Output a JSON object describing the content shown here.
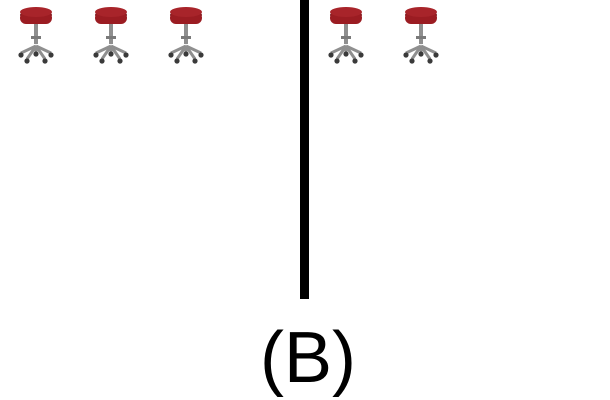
{
  "caption": "(B)",
  "colors": {
    "seat": "#9b1c22",
    "seat_dark": "#6e1015",
    "metal": "#8f8f8f",
    "wheel": "#3a3a3a",
    "divider": "#000000"
  },
  "panels": {
    "left": {
      "stool_count": 3,
      "item_icon": "stool-icon"
    },
    "right": {
      "stool_count": 2,
      "item_icon": "stool-icon"
    }
  }
}
